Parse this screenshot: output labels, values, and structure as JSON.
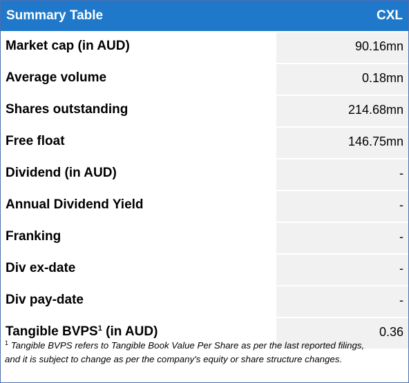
{
  "header": {
    "title": "Summary Table",
    "ticker": "CXL"
  },
  "rows": [
    {
      "label": "Market cap (in AUD)",
      "value": "90.16mn"
    },
    {
      "label": "Average volume",
      "value": "0.18mn"
    },
    {
      "label": "Shares outstanding",
      "value": "214.68mn"
    },
    {
      "label": "Free float",
      "value": "146.75mn"
    },
    {
      "label": "Dividend (in AUD)",
      "value": "-"
    },
    {
      "label": "Annual Dividend Yield",
      "value": "-"
    },
    {
      "label": "Franking",
      "value": "-"
    },
    {
      "label": "Div ex-date",
      "value": "-"
    },
    {
      "label": "Div pay-date",
      "value": "-"
    },
    {
      "label_main": "Tangible BVPS",
      "label_sup": "1",
      "label_suffix": " (in AUD)",
      "value": "0.36"
    }
  ],
  "footnote": {
    "marker": "1",
    "line1": " Tangible BVPS refers to Tangible Book Value Per Share as per the last reported filings,",
    "line2": "and it is subject to change as per the company's equity or share structure changes."
  },
  "colors": {
    "header_bg": "#1f78c9",
    "header_text": "#ffffff",
    "value_cell_bg": "#f1f1f1",
    "border": "#4a6fb0"
  }
}
